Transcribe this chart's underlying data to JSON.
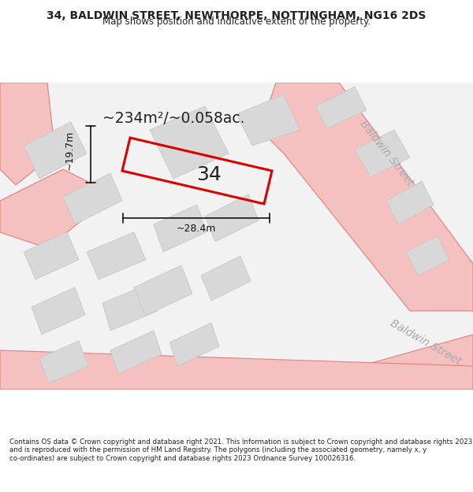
{
  "title_line1": "34, BALDWIN STREET, NEWTHORPE, NOTTINGHAM, NG16 2DS",
  "title_line2": "Map shows position and indicative extent of the property.",
  "copyright_text": "Contains OS data © Crown copyright and database right 2021. This information is subject to Crown copyright and database rights 2023 and is reproduced with the permission of HM Land Registry. The polygons (including the associated geometry, namely x, y co-ordinates) are subject to Crown copyright and database rights 2023 Ordnance Survey 100026316.",
  "area_text": "~234m²/~0.058ac.",
  "property_label": "34",
  "dim_height": "~19.7m",
  "dim_width": "~28.4m",
  "street_label": "Baldwin Street",
  "background_color": "#f5f5f5",
  "map_bg": "#f0f0f0",
  "road_color": "#f5c0c0",
  "road_outline_color": "#e08080",
  "building_color": "#d8d8d8",
  "building_outline": "#c8c8c8",
  "property_fill": "none",
  "property_edge": "#dd0000",
  "dim_color": "#111111",
  "text_color": "#222222",
  "street_text_color": "#aaaaaa"
}
